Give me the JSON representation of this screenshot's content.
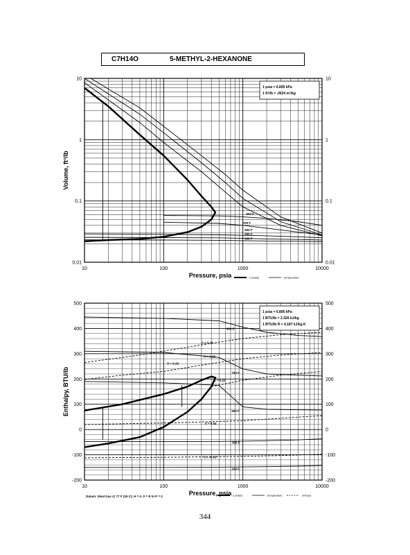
{
  "title": {
    "formula": "C7H14O",
    "name": "5-METHYL-2-HEXANONE"
  },
  "page_number": "344",
  "chart_data": [
    {
      "type": "line",
      "xscale": "log",
      "yscale": "log",
      "xlabel": "Pressure,  psia",
      "ylabel": "Volume,  ft^3/lb",
      "xlim": [
        10,
        10000
      ],
      "ylim": [
        0.01,
        10
      ],
      "x_ticks": [
        "10",
        "100",
        "1000",
        "10000"
      ],
      "y_ticks": [
        "0.01",
        "0.1",
        "1",
        "10"
      ],
      "info_box": [
        "1 psia  =  6.895 kPa",
        "1 ft^3/lb  =  .0624 m^3/kg"
      ],
      "legend": [
        "2 phase",
        "temperature"
      ],
      "series": [
        {
          "name": "2 phase",
          "style": "thick",
          "x": [
            10,
            20,
            50,
            100,
            200,
            300,
            400,
            450,
            450,
            400,
            300,
            200,
            100,
            50,
            20,
            10
          ],
          "y": [
            7,
            3.5,
            1.2,
            0.55,
            0.22,
            0.12,
            0.08,
            0.065,
            0.065,
            0.05,
            0.038,
            0.031,
            0.026,
            0.024,
            0.023,
            0.022
          ]
        },
        {
          "name": "",
          "style": "thin",
          "x": [
            10,
            50,
            100,
            300,
            600,
            1000,
            3000,
            10000
          ],
          "y": [
            8.5,
            1.9,
            0.9,
            0.3,
            0.14,
            0.08,
            0.04,
            0.027
          ]
        },
        {
          "name": "",
          "style": "thin",
          "x": [
            10,
            50,
            100,
            300,
            600,
            1000,
            3000,
            10000
          ],
          "y": [
            10,
            2.6,
            1.3,
            0.42,
            0.2,
            0.11,
            0.046,
            0.028
          ]
        },
        {
          "name": "",
          "style": "thin",
          "x": [
            12,
            50,
            100,
            300,
            600,
            1000,
            3000,
            10000
          ],
          "y": [
            10,
            3.3,
            1.65,
            0.55,
            0.27,
            0.15,
            0.055,
            0.03
          ]
        },
        {
          "name": "500 F",
          "style": "thin",
          "x": [
            100,
            500,
            1000,
            2000,
            5000,
            10000
          ],
          "y": [
            0.058,
            0.057,
            0.055,
            0.052,
            0.046,
            0.04
          ]
        },
        {
          "name": "700 F",
          "style": "thin",
          "x": [
            100,
            500,
            1000,
            2000,
            5000,
            10000
          ],
          "y": [
            0.045,
            0.043,
            0.04,
            0.036,
            0.031,
            0.028
          ]
        },
        {
          "name": "300 F",
          "style": "thin",
          "x": [
            10,
            100,
            500,
            1000,
            2000,
            5000,
            10000
          ],
          "y": [
            0.029,
            0.0285,
            0.028,
            0.0275,
            0.027,
            0.026,
            0.025
          ]
        },
        {
          "name": "200 F",
          "style": "thin",
          "x": [
            10,
            100,
            500,
            1000,
            2000,
            5000,
            10000
          ],
          "y": [
            0.0255,
            0.0252,
            0.025,
            0.0245,
            0.024,
            0.0235,
            0.023
          ]
        },
        {
          "name": "100 F",
          "style": "thin",
          "x": [
            10,
            100,
            500,
            1000,
            2000,
            5000,
            10000
          ],
          "y": [
            0.0232,
            0.023,
            0.0228,
            0.0225,
            0.0222,
            0.022,
            0.0215
          ]
        }
      ],
      "point_labels": [
        {
          "text": "900 F",
          "x": 1100,
          "y": 0.062
        },
        {
          "text": "700 F",
          "x": 1000,
          "y": 0.044
        },
        {
          "text": "500 F",
          "x": 1050,
          "y": 0.034
        },
        {
          "text": "300 F",
          "x": 1050,
          "y": 0.029
        },
        {
          "text": "100 F",
          "x": 1050,
          "y": 0.0245
        }
      ]
    },
    {
      "type": "line",
      "xscale": "log",
      "yscale": "linear",
      "xlabel": "Pressure,  psia",
      "ylabel": "Enthalpy,  BTU/lb",
      "xlim": [
        10,
        10000
      ],
      "ylim": [
        -200,
        500
      ],
      "x_ticks": [
        "10",
        "100",
        "1000",
        "10000"
      ],
      "y_ticks": [
        "-200",
        "-100",
        "0",
        "100",
        "200",
        "300",
        "400",
        "500"
      ],
      "info_box": [
        "1 psia  =  6.895 kPa",
        "1 BTU/lb  =  2.326 kJ/kg",
        "1 BTU/lb R  =  4.187 kJ/kg K"
      ],
      "legend": [
        "2 phase",
        "temperature",
        "entropy"
      ],
      "datum_note": "Datum: Ideal Gas @ 77 F (25 C), H = 0, S = R ln P = 0",
      "series": [
        {
          "name": "2 phase",
          "style": "thick",
          "x": [
            10,
            30,
            100,
            200,
            300,
            400,
            450,
            450,
            400,
            300,
            200,
            100,
            50,
            20,
            10
          ],
          "y": [
            75,
            100,
            140,
            170,
            195,
            210,
            205,
            205,
            170,
            120,
            70,
            10,
            -30,
            -55,
            -70
          ]
        },
        {
          "name": "900 F",
          "style": "thin",
          "x": [
            10,
            100,
            500,
            1000,
            2000,
            5000,
            10000
          ],
          "y": [
            445,
            440,
            430,
            405,
            385,
            372,
            368
          ]
        },
        {
          "name": "700 F",
          "style": "thin",
          "x": [
            10,
            100,
            500,
            1000,
            2000,
            5000,
            10000
          ],
          "y": [
            310,
            305,
            285,
            240,
            220,
            215,
            212
          ]
        },
        {
          "name": "500 F",
          "style": "thin",
          "x": [
            10,
            100,
            500,
            1000,
            2000,
            5000,
            10000
          ],
          "y": [
            190,
            185,
            175,
            90,
            80,
            78,
            77
          ]
        },
        {
          "name": "300 F",
          "style": "thin",
          "x": [
            10,
            100,
            500,
            1000,
            2000,
            5000,
            10000
          ],
          "y": [
            -48,
            -48,
            -47,
            -46,
            -44,
            -41,
            -37
          ]
        },
        {
          "name": "100 F",
          "style": "thin",
          "x": [
            10,
            100,
            500,
            1000,
            2000,
            5000,
            10000
          ],
          "y": [
            -150,
            -150,
            -149,
            -148,
            -147,
            -145,
            -142
          ]
        },
        {
          "name": "S = 0.34",
          "style": "dashed",
          "x": [
            10,
            50,
            100,
            300,
            1000,
            3000,
            10000
          ],
          "y": [
            265,
            295,
            310,
            335,
            360,
            375,
            385
          ]
        },
        {
          "name": "S = 0.26",
          "style": "dashed",
          "x": [
            10,
            30,
            100,
            300,
            1000,
            3000,
            10000
          ],
          "y": [
            198,
            215,
            230,
            255,
            280,
            295,
            305
          ]
        },
        {
          "name": "S = 0.22",
          "style": "dashed",
          "x": [
            400,
            1000,
            3000,
            10000
          ],
          "y": [
            170,
            195,
            215,
            230
          ]
        },
        {
          "name": "S = 0.04",
          "style": "dashed",
          "x": [
            10,
            100,
            300,
            1000,
            3000,
            10000
          ],
          "y": [
            20,
            26,
            30,
            35,
            45,
            55
          ]
        },
        {
          "name": "S = -0.16",
          "style": "dashed",
          "x": [
            10,
            100,
            300,
            1000,
            3000,
            10000
          ],
          "y": [
            -112,
            -110,
            -108,
            -106,
            -103,
            -98
          ]
        }
      ],
      "point_labels": [
        {
          "text": "900 F",
          "x": 620,
          "y": 400
        },
        {
          "text": "S = 0.34",
          "x": 300,
          "y": 345
        },
        {
          "text": "S = 0.28",
          "x": 320,
          "y": 290
        },
        {
          "text": "S = 0.26",
          "x": 110,
          "y": 262
        },
        {
          "text": "700 F",
          "x": 720,
          "y": 225
        },
        {
          "text": "S = 0.22",
          "x": 430,
          "y": 195
        },
        {
          "text": "500 F",
          "x": 720,
          "y": 75
        },
        {
          "text": "S = 0.04",
          "x": 330,
          "y": 25
        },
        {
          "text": "300 F",
          "x": 730,
          "y": -50
        },
        {
          "text": "S = -0.16",
          "x": 320,
          "y": -108
        },
        {
          "text": "100 F",
          "x": 720,
          "y": -155
        }
      ]
    }
  ]
}
